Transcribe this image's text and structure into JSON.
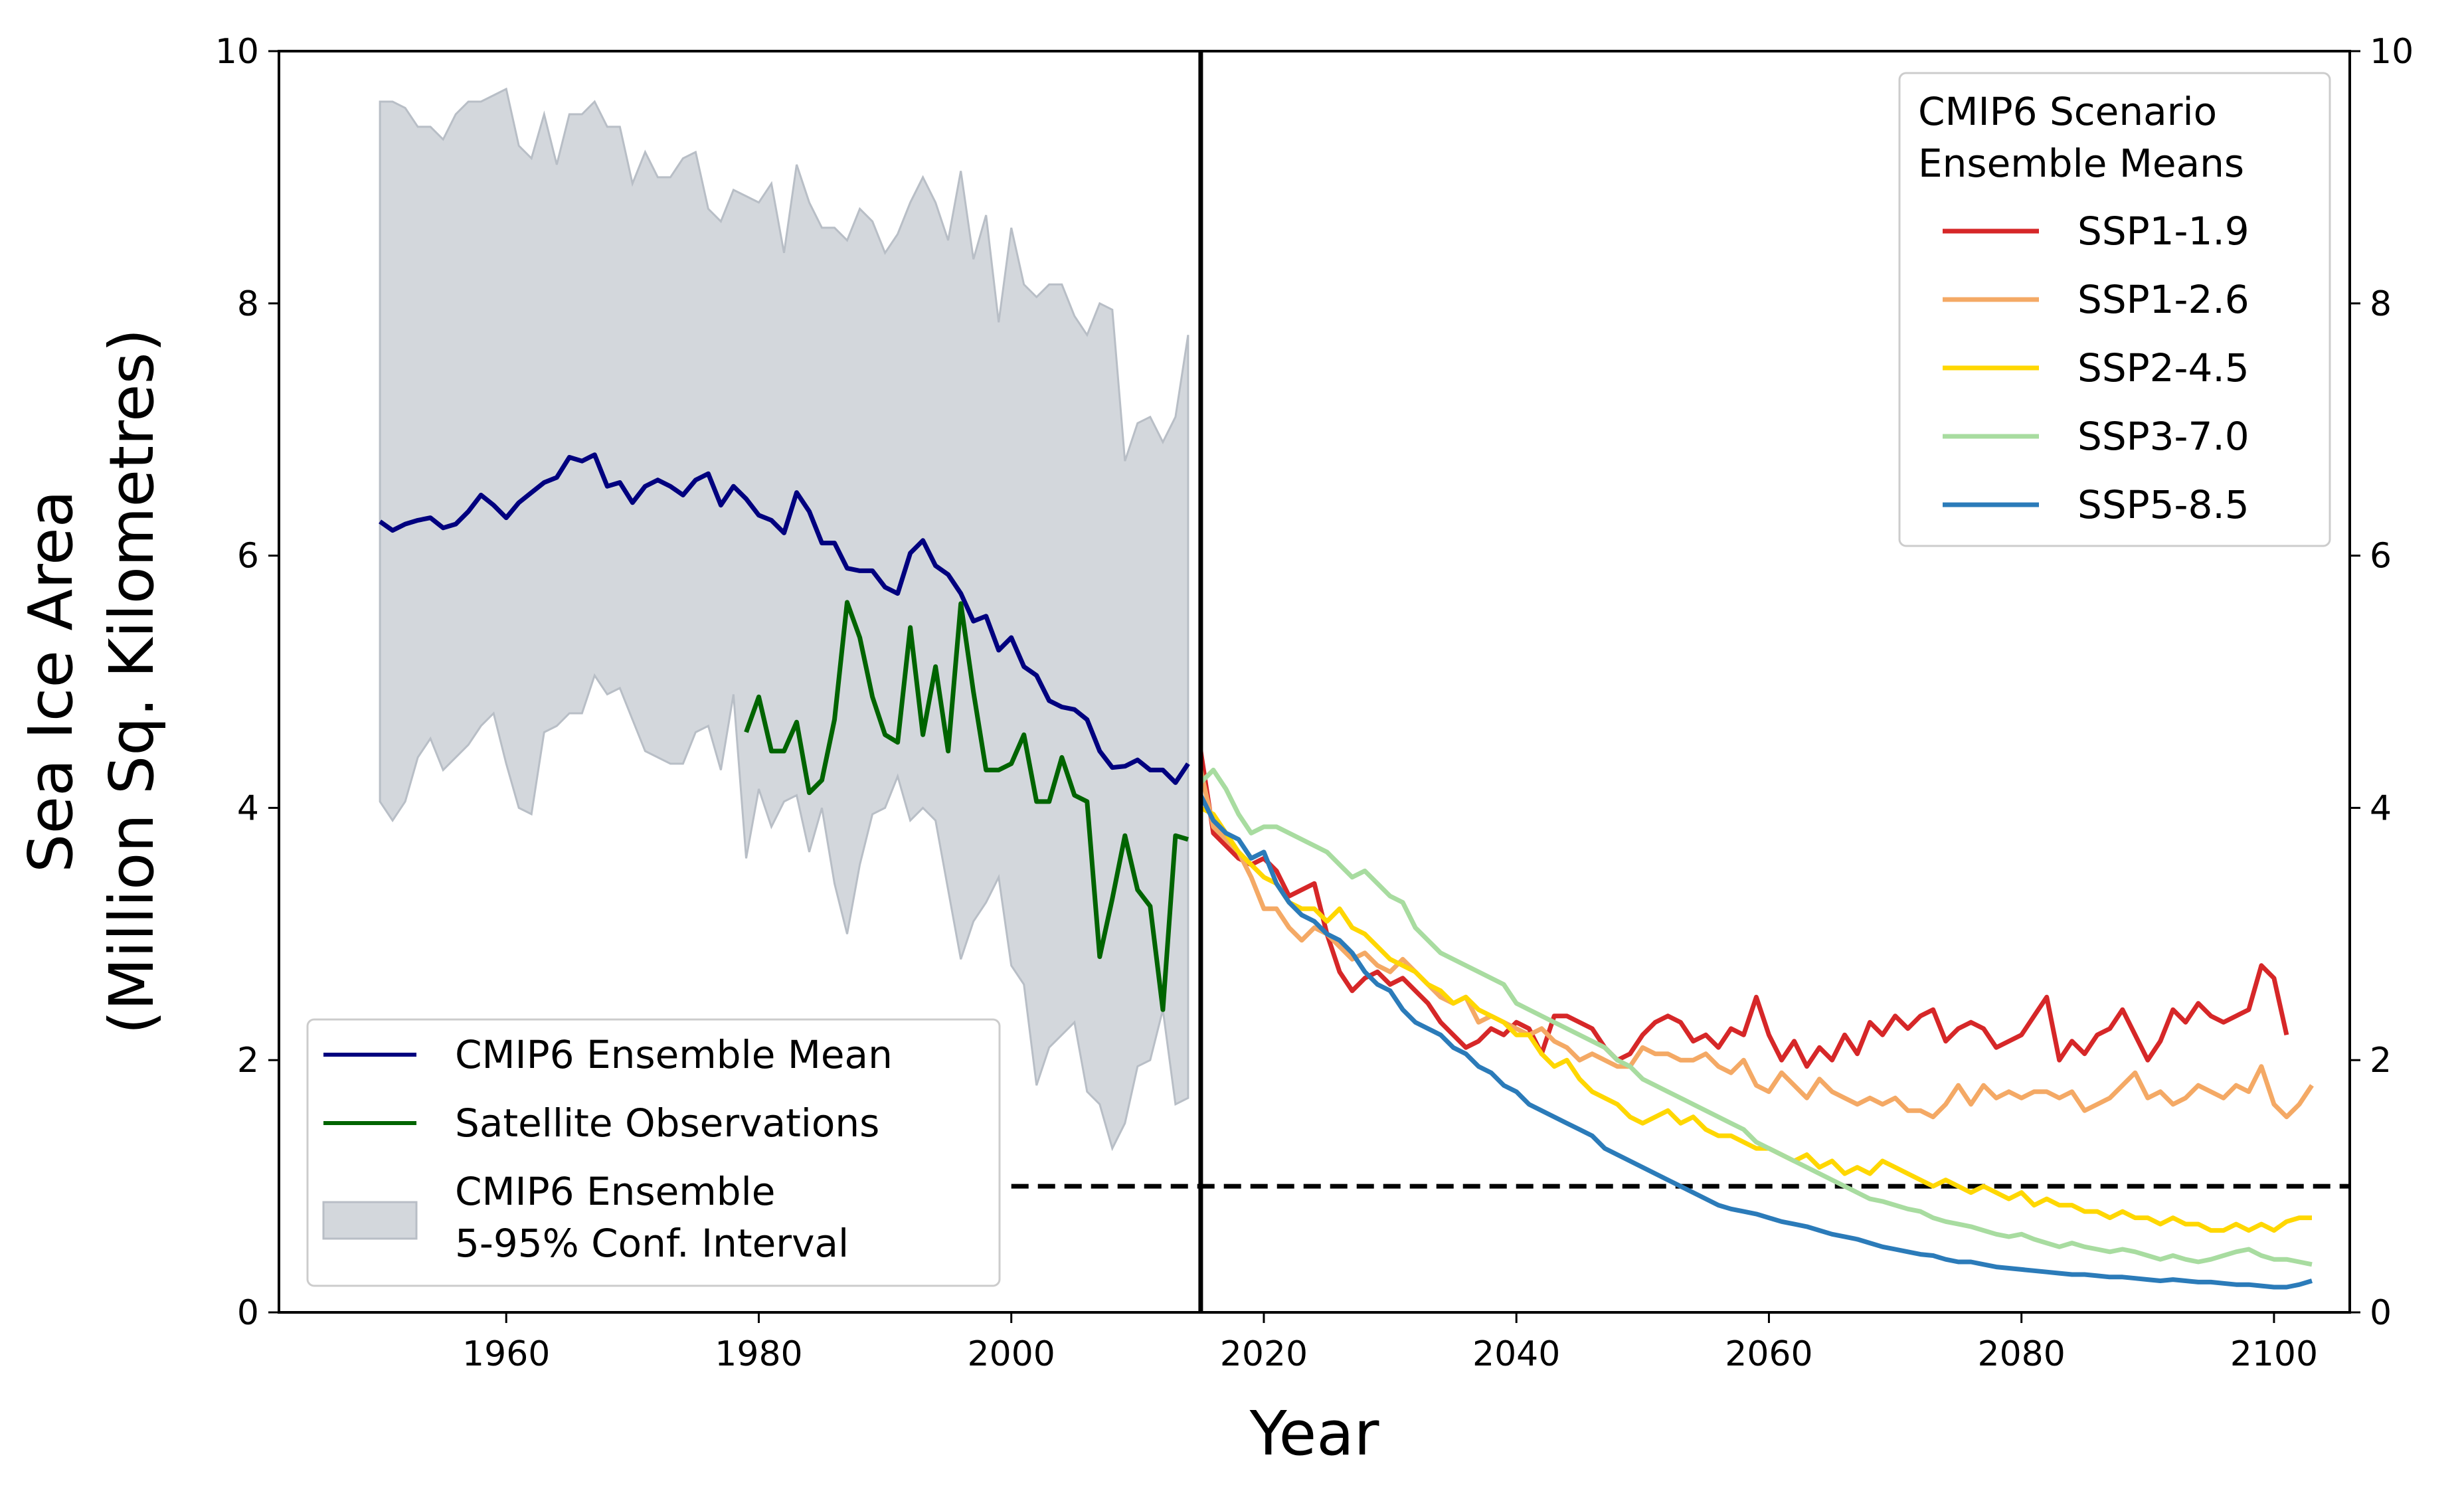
{
  "chart_data": {
    "type": "line",
    "title": "",
    "xlabel": "Year",
    "ylabel_line1": "Sea Ice Area",
    "ylabel_line2": "(Million Sq. Kilometres)",
    "xlim": [
      1942,
      2106
    ],
    "ylim": [
      0,
      10
    ],
    "x_ticks": [
      1960,
      1980,
      2000,
      2020,
      2040,
      2060,
      2080,
      2100
    ],
    "y_ticks": [
      0,
      2,
      4,
      6,
      8,
      10
    ],
    "right_y_ticks": [
      0,
      2,
      4,
      6,
      8,
      10
    ],
    "grid": false,
    "vertical_line_x": 2015,
    "horizontal_dashed_line": {
      "y": 1,
      "x_start": 2000,
      "x_end": 2106
    },
    "legend_left": {
      "placement": "lower-left",
      "entries": [
        {
          "label": "CMIP6 Ensemble Mean",
          "color": "#00007f",
          "kind": "line"
        },
        {
          "label": "Satellite Observations",
          "color": "#006400",
          "kind": "line"
        },
        {
          "label_line1": "CMIP6 Ensemble",
          "label_line2": "5-95% Conf. Interval",
          "color": "#d3d7dc",
          "kind": "area"
        }
      ]
    },
    "legend_right": {
      "placement": "upper-right",
      "title_line1": "CMIP6 Scenario",
      "title_line2": "Ensemble Means",
      "entries": [
        {
          "label": "SSP1-1.9",
          "color": "#d62728"
        },
        {
          "label": "SSP1-2.6",
          "color": "#f4a965"
        },
        {
          "label": "SSP2-4.5",
          "color": "#ffd700"
        },
        {
          "label": "SSP3-7.0",
          "color": "#a8dca0"
        },
        {
          "label": "SSP5-8.5",
          "color": "#2b7bb9"
        }
      ]
    },
    "confidence_interval": {
      "color": "#d3d7dc",
      "x_start": 1950,
      "upper": [
        9.6,
        9.6,
        9.55,
        9.4,
        9.4,
        9.3,
        9.5,
        9.6,
        9.6,
        9.65,
        9.7,
        9.25,
        9.15,
        9.5,
        9.1,
        9.5,
        9.5,
        9.6,
        9.4,
        9.4,
        8.95,
        9.2,
        9.0,
        9.0,
        9.15,
        9.2,
        8.75,
        8.65,
        8.9,
        8.85,
        8.8,
        8.95,
        8.4,
        9.1,
        8.8,
        8.6,
        8.6,
        8.5,
        8.75,
        8.65,
        8.4,
        8.55,
        8.8,
        9.0,
        8.8,
        8.5,
        9.05,
        8.35,
        8.7,
        7.85,
        8.6,
        8.15,
        8.05,
        8.15,
        8.15,
        7.9,
        7.75,
        8.0,
        7.95,
        6.75,
        7.05,
        7.1,
        6.9,
        7.1,
        7.75
      ],
      "lower": [
        4.05,
        3.9,
        4.05,
        4.4,
        4.55,
        4.3,
        4.4,
        4.5,
        4.65,
        4.75,
        4.35,
        4.0,
        3.95,
        4.6,
        4.65,
        4.75,
        4.75,
        5.05,
        4.9,
        4.95,
        4.7,
        4.45,
        4.4,
        4.35,
        4.35,
        4.6,
        4.65,
        4.3,
        4.9,
        3.6,
        4.15,
        3.85,
        4.05,
        4.1,
        3.65,
        4.0,
        3.4,
        3.0,
        3.55,
        3.95,
        4.0,
        4.25,
        3.9,
        4.0,
        3.9,
        3.35,
        2.8,
        3.1,
        3.25,
        3.45,
        2.75,
        2.6,
        1.8,
        2.1,
        2.2,
        2.3,
        1.75,
        1.65,
        1.3,
        1.5,
        1.95,
        2.0,
        2.4,
        1.65,
        1.7
      ]
    },
    "series": [
      {
        "name": "CMIP6 Ensemble Mean",
        "color": "#00007f",
        "x_start": 1950,
        "values": [
          6.27,
          6.2,
          6.25,
          6.28,
          6.3,
          6.22,
          6.25,
          6.35,
          6.48,
          6.4,
          6.3,
          6.42,
          6.5,
          6.58,
          6.62,
          6.78,
          6.75,
          6.8,
          6.55,
          6.58,
          6.42,
          6.55,
          6.6,
          6.55,
          6.48,
          6.6,
          6.65,
          6.4,
          6.55,
          6.45,
          6.32,
          6.28,
          6.18,
          6.5,
          6.35,
          6.1,
          6.1,
          5.9,
          5.88,
          5.88,
          5.75,
          5.7,
          6.02,
          6.12,
          5.92,
          5.85,
          5.7,
          5.48,
          5.52,
          5.25,
          5.35,
          5.12,
          5.05,
          4.85,
          4.8,
          4.78,
          4.7,
          4.45,
          4.32,
          4.33,
          4.38,
          4.3,
          4.3,
          4.2,
          4.35
        ]
      },
      {
        "name": "Satellite Observations",
        "color": "#006400",
        "x_start": 1979,
        "values": [
          4.6,
          4.88,
          4.45,
          4.45,
          4.68,
          4.12,
          4.22,
          4.7,
          5.63,
          5.35,
          4.88,
          4.58,
          4.52,
          5.43,
          4.58,
          5.12,
          4.45,
          5.62,
          4.92,
          4.3,
          4.3,
          4.35,
          4.58,
          4.05,
          4.05,
          4.4,
          4.1,
          4.05,
          2.82,
          3.28,
          3.78,
          3.35,
          3.22,
          2.4,
          3.78,
          3.75
        ]
      },
      {
        "name": "SSP1-1.9",
        "color": "#d62728",
        "x_start": 2015,
        "values": [
          4.45,
          3.8,
          3.7,
          3.6,
          3.55,
          3.6,
          3.5,
          3.3,
          3.35,
          3.4,
          3.0,
          2.7,
          2.55,
          2.65,
          2.7,
          2.6,
          2.65,
          2.55,
          2.45,
          2.3,
          2.2,
          2.1,
          2.15,
          2.25,
          2.2,
          2.3,
          2.25,
          2.05,
          2.35,
          2.35,
          2.3,
          2.25,
          2.1,
          2.0,
          2.05,
          2.2,
          2.3,
          2.35,
          2.3,
          2.15,
          2.2,
          2.1,
          2.25,
          2.2,
          2.5,
          2.2,
          2.0,
          2.15,
          1.95,
          2.1,
          2.0,
          2.2,
          2.05,
          2.3,
          2.2,
          2.35,
          2.25,
          2.35,
          2.4,
          2.15,
          2.25,
          2.3,
          2.25,
          2.1,
          2.15,
          2.2,
          2.35,
          2.5,
          2.0,
          2.15,
          2.05,
          2.2,
          2.25,
          2.4,
          2.2,
          2.0,
          2.15,
          2.4,
          2.3,
          2.45,
          2.35,
          2.3,
          2.35,
          2.4,
          2.75,
          2.65,
          2.2
        ]
      },
      {
        "name": "SSP1-2.6",
        "color": "#f4a965",
        "x_start": 2015,
        "values": [
          4.3,
          3.85,
          3.75,
          3.65,
          3.45,
          3.2,
          3.2,
          3.05,
          2.95,
          3.05,
          3.0,
          2.9,
          2.8,
          2.85,
          2.75,
          2.7,
          2.8,
          2.7,
          2.6,
          2.5,
          2.45,
          2.5,
          2.3,
          2.35,
          2.3,
          2.25,
          2.2,
          2.25,
          2.15,
          2.1,
          2.0,
          2.05,
          2.0,
          1.95,
          1.95,
          2.1,
          2.05,
          2.05,
          2.0,
          2.0,
          2.05,
          1.95,
          1.9,
          2.0,
          1.8,
          1.75,
          1.9,
          1.8,
          1.7,
          1.85,
          1.75,
          1.7,
          1.65,
          1.7,
          1.65,
          1.7,
          1.6,
          1.6,
          1.55,
          1.65,
          1.8,
          1.65,
          1.8,
          1.7,
          1.75,
          1.7,
          1.75,
          1.75,
          1.7,
          1.75,
          1.6,
          1.65,
          1.7,
          1.8,
          1.9,
          1.7,
          1.75,
          1.65,
          1.7,
          1.8,
          1.75,
          1.7,
          1.8,
          1.75,
          1.95,
          1.65,
          1.55,
          1.65,
          1.8
        ]
      },
      {
        "name": "SSP2-4.5",
        "color": "#ffd700",
        "x_start": 2015,
        "values": [
          4.0,
          3.95,
          3.8,
          3.65,
          3.55,
          3.45,
          3.4,
          3.25,
          3.2,
          3.2,
          3.1,
          3.2,
          3.05,
          3.0,
          2.9,
          2.8,
          2.75,
          2.7,
          2.6,
          2.55,
          2.45,
          2.5,
          2.4,
          2.35,
          2.3,
          2.2,
          2.2,
          2.05,
          1.95,
          2.0,
          1.85,
          1.75,
          1.7,
          1.65,
          1.55,
          1.5,
          1.55,
          1.6,
          1.5,
          1.55,
          1.45,
          1.4,
          1.4,
          1.35,
          1.3,
          1.3,
          1.25,
          1.2,
          1.25,
          1.15,
          1.2,
          1.1,
          1.15,
          1.1,
          1.2,
          1.15,
          1.1,
          1.05,
          1.0,
          1.05,
          1.0,
          0.95,
          1.0,
          0.95,
          0.9,
          0.95,
          0.85,
          0.9,
          0.85,
          0.85,
          0.8,
          0.8,
          0.75,
          0.8,
          0.75,
          0.75,
          0.7,
          0.75,
          0.7,
          0.7,
          0.65,
          0.65,
          0.7,
          0.65,
          0.7,
          0.65,
          0.72,
          0.75,
          0.75
        ]
      },
      {
        "name": "SSP3-7.0",
        "color": "#a8dca0",
        "x_start": 2015,
        "values": [
          4.2,
          4.3,
          4.15,
          3.95,
          3.8,
          3.85,
          3.85,
          3.8,
          3.75,
          3.7,
          3.65,
          3.55,
          3.45,
          3.5,
          3.4,
          3.3,
          3.25,
          3.05,
          2.95,
          2.85,
          2.8,
          2.75,
          2.7,
          2.65,
          2.6,
          2.45,
          2.4,
          2.35,
          2.3,
          2.25,
          2.2,
          2.15,
          2.1,
          2.0,
          1.95,
          1.85,
          1.8,
          1.75,
          1.7,
          1.65,
          1.6,
          1.55,
          1.5,
          1.45,
          1.35,
          1.3,
          1.25,
          1.2,
          1.15,
          1.1,
          1.05,
          1.0,
          0.95,
          0.9,
          0.88,
          0.85,
          0.82,
          0.8,
          0.75,
          0.72,
          0.7,
          0.68,
          0.65,
          0.62,
          0.6,
          0.62,
          0.58,
          0.55,
          0.52,
          0.55,
          0.52,
          0.5,
          0.48,
          0.5,
          0.48,
          0.45,
          0.42,
          0.45,
          0.42,
          0.4,
          0.42,
          0.45,
          0.48,
          0.5,
          0.45,
          0.42,
          0.42,
          0.4,
          0.38
        ]
      },
      {
        "name": "SSP5-8.5",
        "color": "#2b7bb9",
        "x_start": 2015,
        "values": [
          4.1,
          3.9,
          3.8,
          3.75,
          3.6,
          3.65,
          3.4,
          3.25,
          3.15,
          3.1,
          3.0,
          2.95,
          2.85,
          2.7,
          2.6,
          2.55,
          2.4,
          2.3,
          2.25,
          2.2,
          2.1,
          2.05,
          1.95,
          1.9,
          1.8,
          1.75,
          1.65,
          1.6,
          1.55,
          1.5,
          1.45,
          1.4,
          1.3,
          1.25,
          1.2,
          1.15,
          1.1,
          1.05,
          1.0,
          0.95,
          0.9,
          0.85,
          0.82,
          0.8,
          0.78,
          0.75,
          0.72,
          0.7,
          0.68,
          0.65,
          0.62,
          0.6,
          0.58,
          0.55,
          0.52,
          0.5,
          0.48,
          0.46,
          0.45,
          0.42,
          0.4,
          0.4,
          0.38,
          0.36,
          0.35,
          0.34,
          0.33,
          0.32,
          0.31,
          0.3,
          0.3,
          0.29,
          0.28,
          0.28,
          0.27,
          0.26,
          0.25,
          0.26,
          0.25,
          0.24,
          0.24,
          0.23,
          0.22,
          0.22,
          0.21,
          0.2,
          0.2,
          0.22,
          0.25
        ]
      }
    ]
  }
}
